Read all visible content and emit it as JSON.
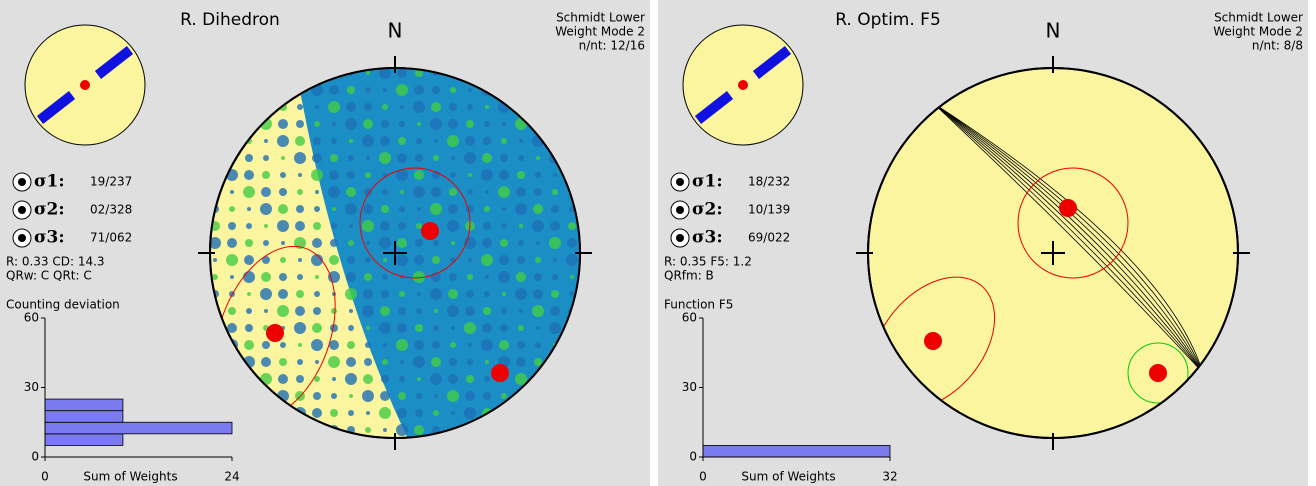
{
  "panels": [
    {
      "title": "R. Dihedron",
      "projection": "Schmidt Lower",
      "weight_mode": "Weight Mode 2",
      "count": "n/nt: 12/16",
      "north": "N",
      "stress": [
        {
          "label": "σ1:",
          "value": "19/237"
        },
        {
          "label": "σ2:",
          "value": "02/328"
        },
        {
          "label": "σ3:",
          "value": "71/062"
        }
      ],
      "params": [
        "R: 0.33  CD: 14.3",
        "QRw: C  QRt: C"
      ],
      "chart_data": {
        "type": "histogram",
        "title": "Counting deviation",
        "xlabel": "Sum of Weights",
        "bins": [
          5,
          10,
          15,
          20,
          25
        ],
        "values": [
          10,
          24,
          10,
          10
        ],
        "xlim": [
          0,
          24
        ],
        "xticks": [
          0,
          24
        ],
        "ylim": [
          0,
          60
        ],
        "yticks": [
          0,
          30,
          60
        ],
        "color": "#7b7bef"
      }
    },
    {
      "title": "R. Optim. F5",
      "projection": "Schmidt Lower",
      "weight_mode": "Weight Mode 2",
      "count": "n/nt: 8/8",
      "north": "N",
      "stress": [
        {
          "label": "σ1:",
          "value": "18/232"
        },
        {
          "label": "σ2:",
          "value": "10/139"
        },
        {
          "label": "σ3:",
          "value": "69/022"
        }
      ],
      "params": [
        "R: 0.35  F5: 1.2",
        "QRfm: B"
      ],
      "chart_data": {
        "type": "histogram",
        "title": "Function F5",
        "xlabel": "Sum of Weights",
        "bins": [
          0,
          5
        ],
        "values": [
          32
        ],
        "xlim": [
          0,
          32
        ],
        "xticks": [
          0,
          32
        ],
        "ylim": [
          0,
          60
        ],
        "yticks": [
          0,
          30,
          60
        ],
        "color": "#7b7bef"
      }
    }
  ]
}
